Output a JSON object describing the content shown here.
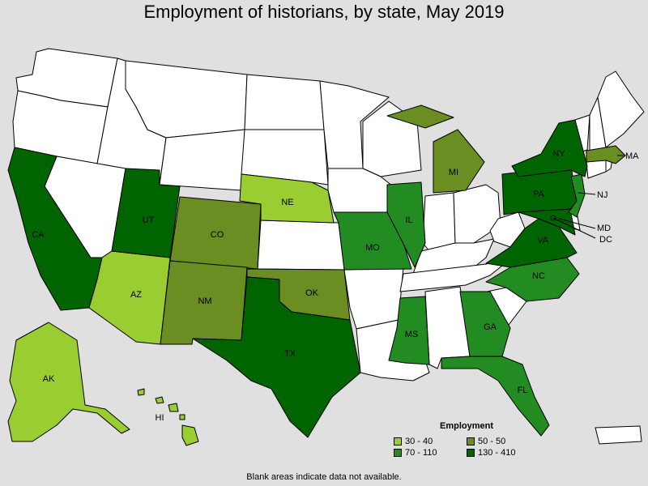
{
  "title": "Employment of historians, by state, May 2019",
  "footnote": "Blank areas indicate data not available.",
  "colors": {
    "blank": "#ffffff",
    "c1": "#9acd32",
    "c2": "#6b8e23",
    "c3": "#228b22",
    "c4": "#006400"
  },
  "legend": {
    "title": "Employment",
    "items": [
      {
        "label": "30 - 40",
        "color": "#9acd32"
      },
      {
        "label": "50 - 50",
        "color": "#6b8e23"
      },
      {
        "label": "70 - 110",
        "color": "#228b22"
      },
      {
        "label": "130 - 410",
        "color": "#006400"
      }
    ]
  },
  "states": [
    {
      "abbr": "CA",
      "category": "130 - 410"
    },
    {
      "abbr": "UT",
      "category": "130 - 410"
    },
    {
      "abbr": "TX",
      "category": "130 - 410"
    },
    {
      "abbr": "NY",
      "category": "130 - 410"
    },
    {
      "abbr": "PA",
      "category": "130 - 410"
    },
    {
      "abbr": "VA",
      "category": "130 - 410"
    },
    {
      "abbr": "MD",
      "category": "130 - 410"
    },
    {
      "abbr": "DC",
      "category": "130 - 410"
    },
    {
      "abbr": "MO",
      "category": "70 - 110"
    },
    {
      "abbr": "IL",
      "category": "70 - 110"
    },
    {
      "abbr": "MS",
      "category": "70 - 110"
    },
    {
      "abbr": "GA",
      "category": "70 - 110"
    },
    {
      "abbr": "FL",
      "category": "70 - 110"
    },
    {
      "abbr": "NC",
      "category": "70 - 110"
    },
    {
      "abbr": "NJ",
      "category": "70 - 110"
    },
    {
      "abbr": "CO",
      "category": "50 - 50"
    },
    {
      "abbr": "NM",
      "category": "50 - 50"
    },
    {
      "abbr": "OK",
      "category": "50 - 50"
    },
    {
      "abbr": "MI",
      "category": "50 - 50"
    },
    {
      "abbr": "MA",
      "category": "50 - 50"
    },
    {
      "abbr": "NE",
      "category": "30 - 40"
    },
    {
      "abbr": "AZ",
      "category": "30 - 40"
    },
    {
      "abbr": "AK",
      "category": "30 - 40"
    },
    {
      "abbr": "HI",
      "category": "30 - 40"
    }
  ]
}
